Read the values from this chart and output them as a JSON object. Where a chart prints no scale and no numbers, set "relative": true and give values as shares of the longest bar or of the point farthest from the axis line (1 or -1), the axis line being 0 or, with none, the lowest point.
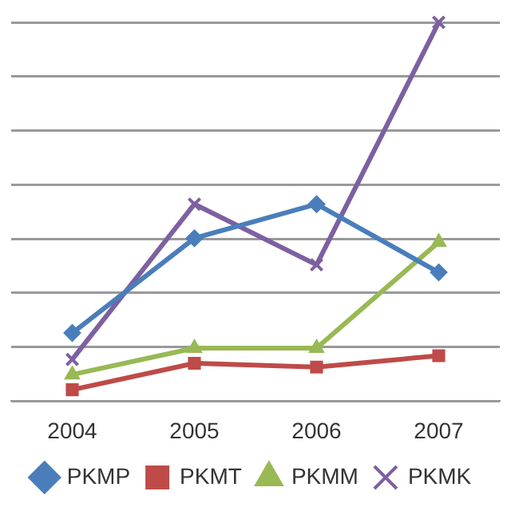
{
  "chart_data": {
    "type": "line",
    "relative": true,
    "categories": [
      "2004",
      "2005",
      "2006",
      "2007"
    ],
    "grid": "y",
    "legend": "bottom",
    "series": [
      {
        "name": "PKMP",
        "color": "#4a7ebb",
        "marker": "diamond",
        "values": [
          0.18,
          0.43,
          0.52,
          0.34
        ]
      },
      {
        "name": "PKMT",
        "color": "#be4b48",
        "marker": "square",
        "values": [
          0.03,
          0.1,
          0.09,
          0.12
        ]
      },
      {
        "name": "PKMM",
        "color": "#98b954",
        "marker": "triangle",
        "values": [
          0.07,
          0.14,
          0.14,
          0.42
        ]
      },
      {
        "name": "PKMK",
        "color": "#7d60a0",
        "marker": "cross",
        "values": [
          0.11,
          0.52,
          0.36,
          1
        ]
      }
    ]
  }
}
